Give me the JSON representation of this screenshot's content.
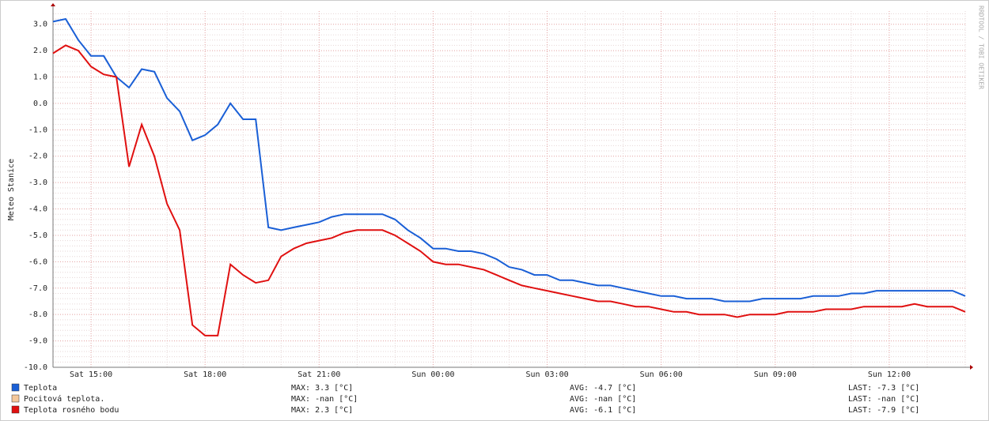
{
  "chart_data": {
    "type": "line",
    "y_label": "Meteo Stanice",
    "watermark": "RRDTOOL / TOBI OETIKER",
    "categories": [
      null,
      null,
      null,
      "Sat 15:00",
      null,
      null,
      null,
      null,
      null,
      null,
      null,
      null,
      "Sat 18:00",
      null,
      null,
      null,
      null,
      null,
      null,
      null,
      null,
      "Sat 21:00",
      null,
      null,
      null,
      null,
      null,
      null,
      null,
      null,
      "Sun 00:00",
      null,
      null,
      null,
      null,
      null,
      null,
      null,
      null,
      "Sun 03:00",
      null,
      null,
      null,
      null,
      null,
      null,
      null,
      null,
      "Sun 06:00",
      null,
      null,
      null,
      null,
      null,
      null,
      null,
      null,
      "Sun 09:00",
      null,
      null,
      null,
      null,
      null,
      null,
      null,
      null,
      "Sun 12:00",
      null,
      null,
      null,
      null,
      null,
      null
    ],
    "ylim": [
      -10,
      3.5
    ],
    "yticks": [
      {
        "value": 3,
        "label": "3.0"
      },
      {
        "value": 2,
        "label": "2.0"
      },
      {
        "value": 1,
        "label": "1.0"
      },
      {
        "value": 0,
        "label": "0.0"
      },
      {
        "value": -1,
        "label": "-1.0"
      },
      {
        "value": -2,
        "label": "-2.0"
      },
      {
        "value": -3,
        "label": "-3.0"
      },
      {
        "value": -4,
        "label": "-4.0"
      },
      {
        "value": -5,
        "label": "-5.0"
      },
      {
        "value": -6,
        "label": "-6.0"
      },
      {
        "value": -7,
        "label": "-7.0"
      },
      {
        "value": -8,
        "label": "-8.0"
      },
      {
        "value": -9,
        "label": "-9.0"
      },
      {
        "value": -10,
        "label": "-10.0"
      }
    ],
    "grid": true,
    "series": [
      {
        "name": "Teplota",
        "color": "#1a5fd6",
        "stats": [
          "MAX: 3.3 [°C]",
          "AVG: -4.7 [°C]",
          "LAST: -7.3 [°C]"
        ],
        "values": [
          3.1,
          3.2,
          2.4,
          1.8,
          1.8,
          1.0,
          0.6,
          1.3,
          1.2,
          0.2,
          -0.3,
          -1.4,
          -1.2,
          -0.8,
          0.0,
          -0.6,
          -0.6,
          -4.7,
          -4.8,
          -4.7,
          -4.6,
          -4.5,
          -4.3,
          -4.2,
          -4.2,
          -4.2,
          -4.2,
          -4.4,
          -4.8,
          -5.1,
          -5.5,
          -5.5,
          -5.6,
          -5.6,
          -5.7,
          -5.9,
          -6.2,
          -6.3,
          -6.5,
          -6.5,
          -6.7,
          -6.7,
          -6.8,
          -6.9,
          -6.9,
          -7.0,
          -7.1,
          -7.2,
          -7.3,
          -7.3,
          -7.4,
          -7.4,
          -7.4,
          -7.5,
          -7.5,
          -7.5,
          -7.4,
          -7.4,
          -7.4,
          -7.4,
          -7.3,
          -7.3,
          -7.3,
          -7.2,
          -7.2,
          -7.1,
          -7.1,
          -7.1,
          -7.1,
          -7.1,
          -7.1,
          -7.1,
          -7.3
        ]
      },
      {
        "name": "Pocitová teplota.",
        "color": "#f5c89a",
        "stats": [
          "MAX: -nan [°C]",
          "AVG: -nan [°C]",
          "LAST: -nan [°C]"
        ],
        "values": [
          null,
          null,
          null,
          null,
          null,
          null,
          null,
          null,
          null,
          null,
          null,
          null,
          null,
          null,
          null,
          null,
          null,
          null,
          null,
          null,
          null,
          null,
          null,
          null,
          null,
          null,
          null,
          null,
          null,
          null,
          null,
          null,
          null,
          null,
          null,
          null,
          null,
          null,
          null,
          null,
          null,
          null,
          null,
          null,
          null,
          null,
          null,
          null,
          null,
          null,
          null,
          null,
          null,
          null,
          null,
          null,
          null,
          null,
          null,
          null,
          null,
          null,
          null,
          null,
          null,
          null,
          null,
          null,
          null,
          null,
          null,
          null,
          null
        ]
      },
      {
        "name": "Teplota rosného bodu",
        "color": "#e01010",
        "stats": [
          "MAX: 2.3 [°C]",
          "AVG: -6.1 [°C]",
          "LAST: -7.9 [°C]"
        ],
        "values": [
          1.9,
          2.2,
          2.0,
          1.4,
          1.1,
          1.0,
          -2.4,
          -0.8,
          -2.0,
          -3.8,
          -4.8,
          -8.4,
          -8.8,
          -8.8,
          -6.1,
          -6.5,
          -6.8,
          -6.7,
          -5.8,
          -5.5,
          -5.3,
          -5.2,
          -5.1,
          -4.9,
          -4.8,
          -4.8,
          -4.8,
          -5.0,
          -5.3,
          -5.6,
          -6.0,
          -6.1,
          -6.1,
          -6.2,
          -6.3,
          -6.5,
          -6.7,
          -6.9,
          -7.0,
          -7.1,
          -7.2,
          -7.3,
          -7.4,
          -7.5,
          -7.5,
          -7.6,
          -7.7,
          -7.7,
          -7.8,
          -7.9,
          -7.9,
          -8.0,
          -8.0,
          -8.0,
          -8.1,
          -8.0,
          -8.0,
          -8.0,
          -7.9,
          -7.9,
          -7.9,
          -7.8,
          -7.8,
          -7.8,
          -7.7,
          -7.7,
          -7.7,
          -7.7,
          -7.6,
          -7.7,
          -7.7,
          -7.7,
          -7.9
        ]
      }
    ]
  }
}
